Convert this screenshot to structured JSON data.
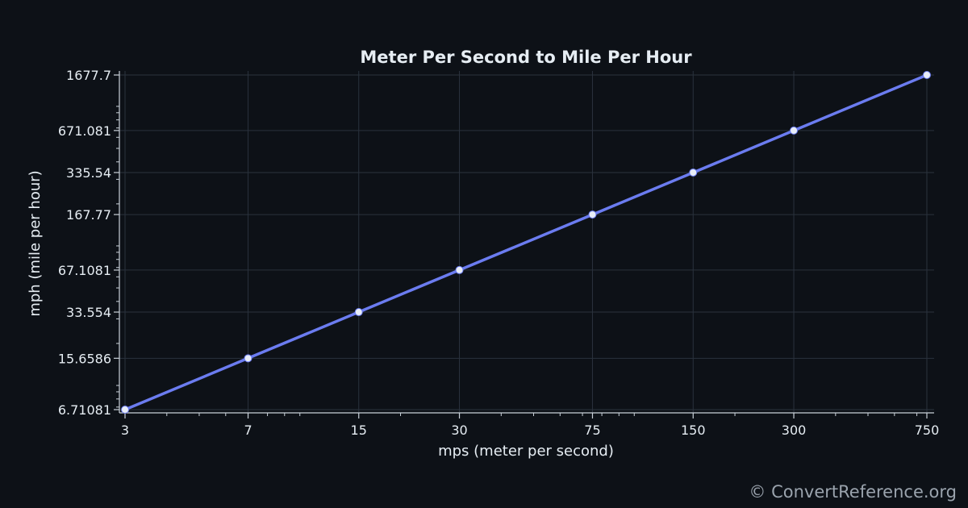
{
  "chart_data": {
    "type": "line",
    "title": "Meter Per Second to Mile Per Hour",
    "xlabel": "mps (meter per second)",
    "ylabel": "mph (mile per hour)",
    "x_scale": "log",
    "y_scale": "log",
    "xlim": [
      3,
      750
    ],
    "ylim": [
      6.71081,
      1677.7
    ],
    "x_ticks": [
      3,
      7,
      15,
      30,
      75,
      150,
      300,
      750
    ],
    "x_tick_labels": [
      "3",
      "7",
      "15",
      "30",
      "75",
      "150",
      "300",
      "750"
    ],
    "y_ticks": [
      6.71081,
      15.6586,
      33.554,
      67.1081,
      167.77,
      335.54,
      671.081,
      1677.7
    ],
    "y_tick_labels": [
      "6.71081",
      "15.6586",
      "33.554",
      "67.1081",
      "167.77",
      "335.54",
      "671.081",
      "1677.7"
    ],
    "grid": true,
    "series": [
      {
        "x": [
          3,
          7,
          15,
          30,
          75,
          150,
          300,
          750
        ],
        "y": [
          6.71081,
          15.6586,
          33.554,
          67.1081,
          167.77,
          335.54,
          671.081,
          1677.7
        ]
      }
    ]
  },
  "colors": {
    "background": "#0d1117",
    "line": "#6b7cf0",
    "marker": "#e8edf7",
    "grid": "#2a323d",
    "axis": "#c9d1d9",
    "text": "#e6edf3"
  },
  "watermark": "© ConvertReference.org"
}
